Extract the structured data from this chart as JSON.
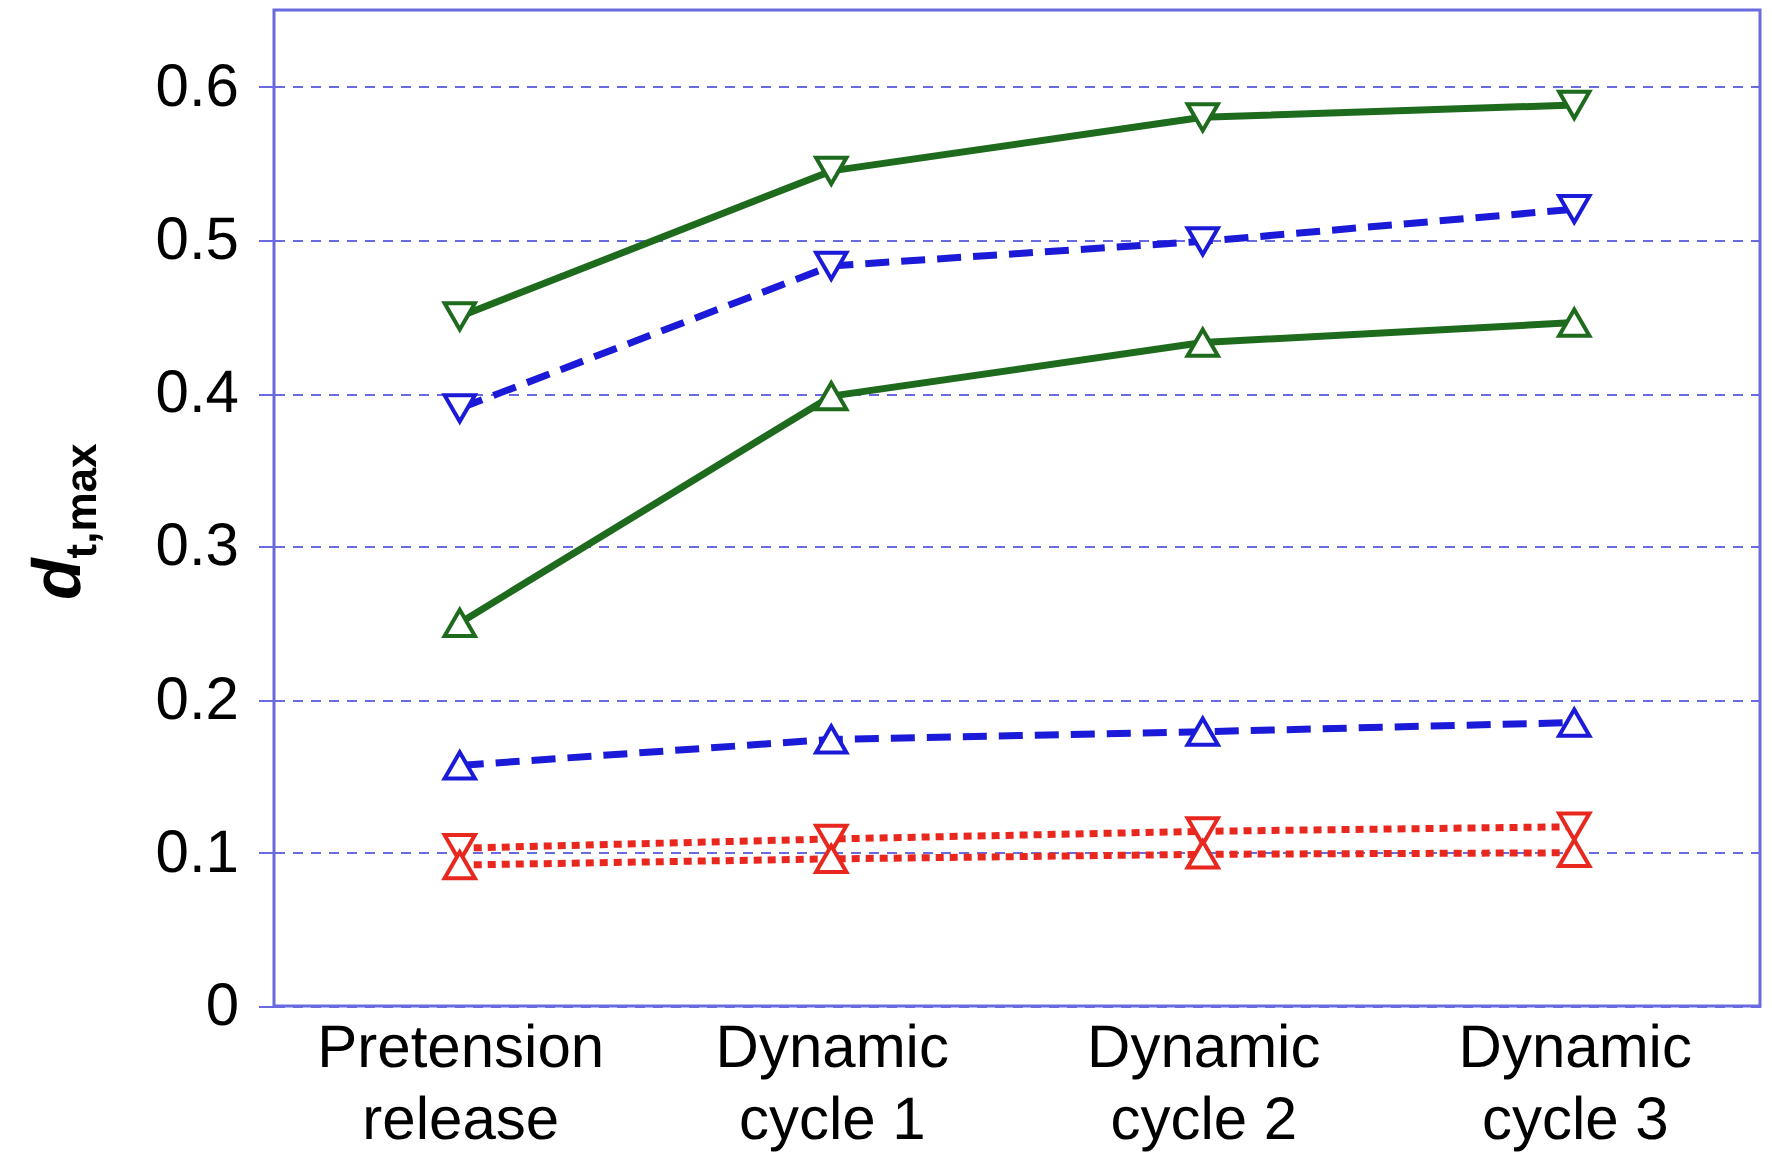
{
  "chart_data": {
    "type": "line",
    "ylabel": "d$_{t,max}$",
    "categories": [
      "Pretension release",
      "Dynamic cycle 1",
      "Dynamic cycle 2",
      "Dynamic cycle 3"
    ],
    "series": [
      {
        "color": "#1e6b1e",
        "line_style": "solid",
        "marker": "triangle-down",
        "values": [
          0.45,
          0.545,
          0.58,
          0.588
        ]
      },
      {
        "color": "#1a1ad8",
        "line_style": "dashed",
        "marker": "triangle-down",
        "values": [
          0.39,
          0.483,
          0.499,
          0.52
        ]
      },
      {
        "color": "#1e6b1e",
        "line_style": "solid",
        "marker": "triangle",
        "values": [
          0.25,
          0.398,
          0.433,
          0.446
        ]
      },
      {
        "color": "#1a1ad8",
        "line_style": "dashed",
        "marker": "triangle",
        "values": [
          0.157,
          0.174,
          0.179,
          0.185
        ]
      },
      {
        "color": "#e8281e",
        "line_style": "dotted",
        "marker": "triangle-down",
        "values": [
          0.103,
          0.109,
          0.114,
          0.117
        ]
      },
      {
        "color": "#e8281e",
        "line_style": "dotted",
        "marker": "triangle",
        "values": [
          0.092,
          0.096,
          0.099,
          0.1
        ]
      }
    ],
    "ylim": [
      0,
      0.65
    ],
    "yticks": [
      0,
      0.1,
      0.2,
      0.3,
      0.4,
      0.5,
      0.6
    ],
    "grid": "y"
  }
}
